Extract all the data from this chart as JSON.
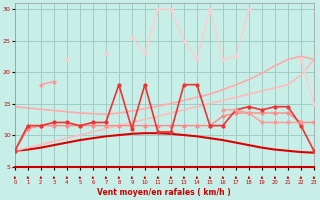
{
  "bg_color": "#c8eee8",
  "grid_color": "#a0ccc4",
  "x_values": [
    0,
    1,
    2,
    3,
    4,
    5,
    6,
    7,
    8,
    9,
    10,
    11,
    12,
    13,
    14,
    15,
    16,
    17,
    18,
    19,
    20,
    21,
    22,
    23
  ],
  "xlabel": "Vent moyen/en rafales ( km/h )",
  "xlim": [
    0,
    23
  ],
  "ylim": [
    5,
    31
  ],
  "yticks": [
    5,
    10,
    15,
    20,
    25,
    30
  ],
  "series": [
    {
      "name": "smooth_bell_red",
      "color": "#dd0000",
      "lw": 1.5,
      "marker": null,
      "values": [
        7.5,
        7.7,
        8.0,
        8.4,
        8.8,
        9.2,
        9.5,
        9.8,
        10.0,
        10.2,
        10.3,
        10.3,
        10.2,
        10.0,
        9.8,
        9.5,
        9.2,
        8.8,
        8.4,
        8.0,
        7.7,
        7.5,
        7.3,
        7.2
      ]
    },
    {
      "name": "rising_line1_light",
      "color": "#ffbbbb",
      "lw": 1.2,
      "marker": null,
      "values": [
        7.5,
        8.0,
        8.5,
        9.0,
        9.5,
        10.0,
        10.5,
        11.0,
        11.5,
        12.0,
        12.5,
        13.0,
        13.5,
        14.0,
        14.5,
        15.0,
        15.5,
        16.0,
        16.5,
        17.0,
        17.5,
        18.0,
        19.5,
        22.0
      ]
    },
    {
      "name": "rising_line2_medium",
      "color": "#ffaaaa",
      "lw": 1.2,
      "marker": null,
      "values": [
        14.5,
        14.3,
        14.1,
        13.9,
        13.7,
        13.5,
        13.4,
        13.3,
        13.5,
        13.8,
        14.2,
        14.6,
        15.0,
        15.5,
        16.0,
        16.5,
        17.2,
        18.0,
        18.8,
        19.8,
        21.0,
        22.0,
        22.5,
        22.0
      ]
    },
    {
      "name": "markers_med_pink",
      "color": "#ff8888",
      "lw": 1.0,
      "marker": "o",
      "markersize": 2.0,
      "values": [
        7.5,
        11.0,
        11.5,
        11.5,
        11.5,
        11.5,
        11.5,
        11.5,
        11.5,
        11.5,
        11.5,
        11.5,
        11.5,
        11.5,
        11.5,
        11.5,
        13.0,
        13.5,
        13.5,
        13.5,
        13.5,
        13.5,
        12.0,
        12.0
      ]
    },
    {
      "name": "markers_zigzag_bright",
      "color": "#ee3333",
      "lw": 1.2,
      "marker": "o",
      "markersize": 2.0,
      "values": [
        7.5,
        11.5,
        11.5,
        12.0,
        12.0,
        11.5,
        12.0,
        12.0,
        18.0,
        11.0,
        18.0,
        10.5,
        10.5,
        18.0,
        18.0,
        11.5,
        11.5,
        14.0,
        14.5,
        14.0,
        14.5,
        14.5,
        11.5,
        7.5
      ]
    },
    {
      "name": "very_jagged_light_pink",
      "color": "#ffcccc",
      "lw": 1.0,
      "marker": "o",
      "markersize": 2.0,
      "values": [
        null,
        null,
        null,
        null,
        22.0,
        null,
        null,
        23.0,
        null,
        25.5,
        23.0,
        30.0,
        30.0,
        25.0,
        22.0,
        30.0,
        22.0,
        22.5,
        30.0,
        null,
        null,
        null,
        22.0,
        15.0
      ]
    },
    {
      "name": "medium_jagged",
      "color": "#ff9999",
      "lw": 1.0,
      "marker": "o",
      "markersize": 2.0,
      "values": [
        null,
        null,
        18.0,
        18.5,
        null,
        null,
        null,
        null,
        null,
        null,
        null,
        null,
        null,
        null,
        null,
        null,
        14.0,
        14.0,
        13.5,
        12.0,
        12.0,
        12.0,
        12.0,
        null
      ]
    }
  ]
}
